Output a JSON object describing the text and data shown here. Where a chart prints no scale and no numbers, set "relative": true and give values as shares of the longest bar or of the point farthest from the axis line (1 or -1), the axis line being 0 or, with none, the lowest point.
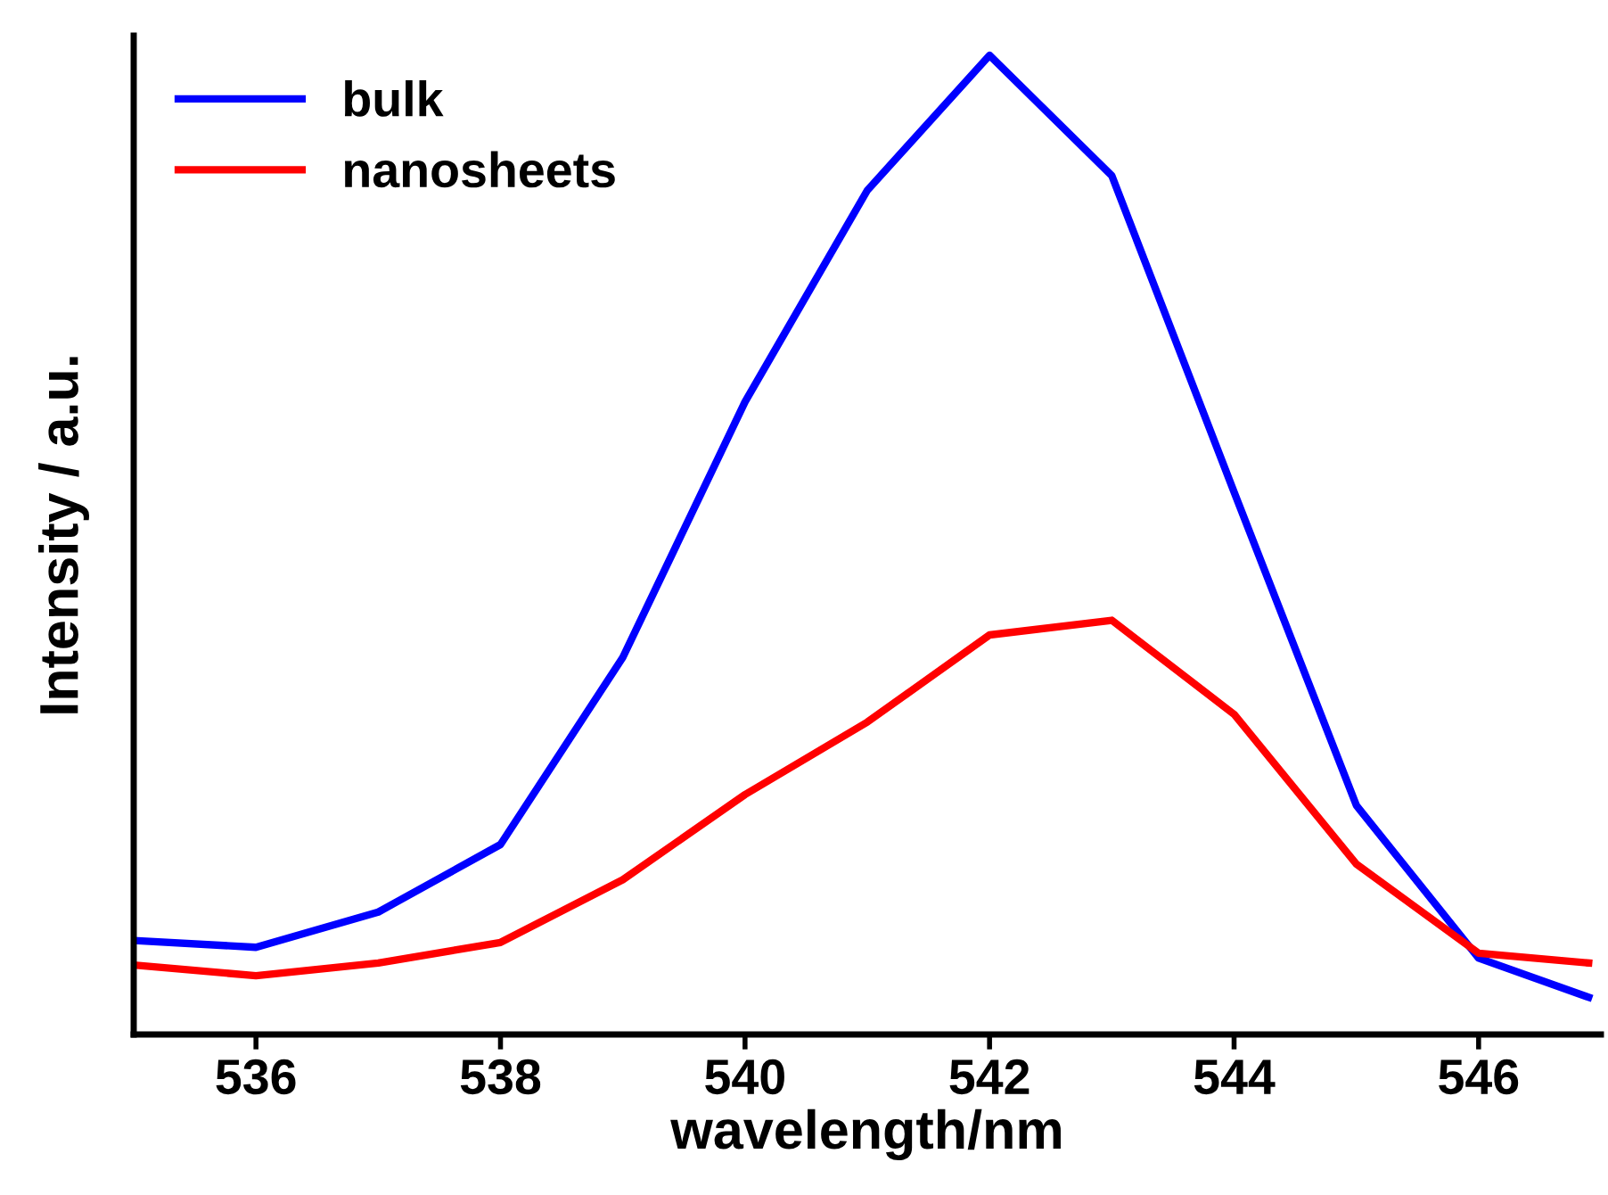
{
  "chart_data": {
    "type": "line",
    "xlabel": "wavelength/nm",
    "ylabel": "Intensity / a.u.",
    "relative": true,
    "x": [
      535,
      536,
      537,
      538,
      539,
      540,
      541,
      542,
      543,
      544,
      545,
      546,
      546.9
    ],
    "series": [
      {
        "name": "bulk",
        "color": "#0000ff",
        "values": [
          0.096,
          0.089,
          0.125,
          0.194,
          0.385,
          0.646,
          0.862,
          1,
          0.877,
          0.554,
          0.234,
          0.078,
          0.038
        ]
      },
      {
        "name": "nanosheets",
        "color": "#ff0000",
        "values": [
          0.071,
          0.06,
          0.073,
          0.094,
          0.158,
          0.245,
          0.319,
          0.408,
          0.423,
          0.327,
          0.174,
          0.083,
          0.073
        ]
      }
    ],
    "xlim": [
      535,
      547
    ],
    "xticks": [
      536,
      538,
      540,
      542,
      544,
      546
    ],
    "tick_labels": "x",
    "legend": "top left",
    "grid": false,
    "marker": "none",
    "line_style": "solid"
  }
}
